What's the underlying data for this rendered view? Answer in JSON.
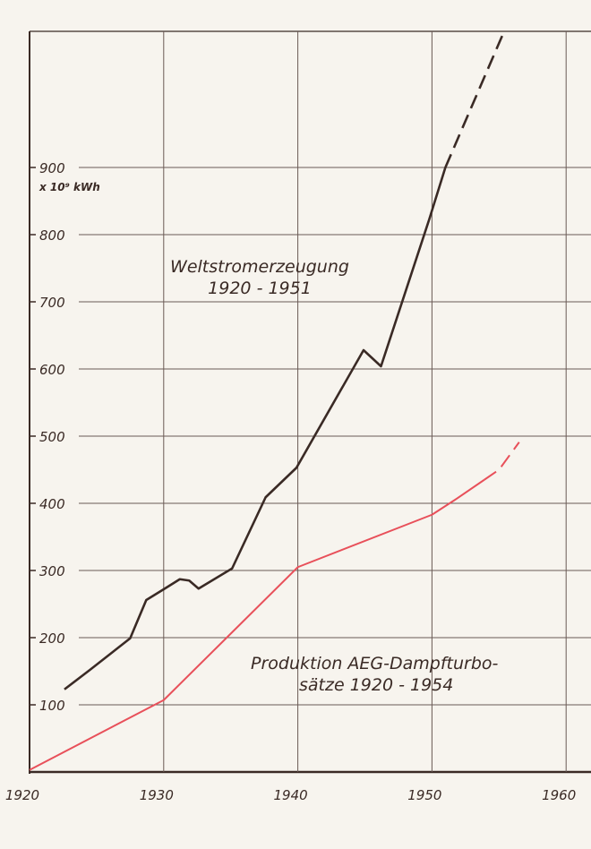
{
  "chart_data": {
    "type": "line",
    "title": "",
    "xlabel": "",
    "ylabel": "",
    "unit_label": "x 10⁹ kWh",
    "xlim": [
      1920,
      1962
    ],
    "ylim": [
      0,
      1100
    ],
    "grid": true,
    "x_ticks": [
      "1920",
      "1930",
      "1940",
      "1950",
      "1960"
    ],
    "x_tick_values": [
      1920,
      1930,
      1940,
      1950,
      1960
    ],
    "y_ticks": [
      "100",
      "200",
      "300",
      "400",
      "500",
      "600",
      "700",
      "800",
      "900"
    ],
    "y_tick_values": [
      100,
      200,
      300,
      400,
      500,
      600,
      700,
      800,
      900
    ],
    "series": [
      {
        "name": "Weltstromerzeugung 1920 - 1951",
        "label_lines": [
          "Weltstromerzeugung",
          "1920 - 1951"
        ],
        "color": "#3a2a25",
        "x": [
          1922.6,
          1924.5,
          1927.5,
          1928.7,
          1930,
          1931.2,
          1931.9,
          1932.6,
          1935.1,
          1937.6,
          1939.9,
          1944.9,
          1946.2,
          1949.8,
          1951
        ],
        "y": [
          123,
          152,
          199,
          256,
          272,
          287,
          285,
          273,
          303,
          409,
          453,
          628,
          604,
          823,
          900
        ],
        "projection": {
          "x": [
            1951,
            1955.3
          ],
          "y": [
            900,
            1099
          ]
        }
      },
      {
        "name": "Produktion AEG-Dampfturbosätze 1920 - 1954",
        "label_lines": [
          "Produktion AEG-Dampfturbo-",
          "sätze 1920 - 1954"
        ],
        "color": "#e8505a",
        "x": [
          1920,
          1930,
          1940,
          1950,
          1951.7,
          1953.9
        ],
        "y": [
          3,
          107,
          305,
          383,
          405,
          435
        ],
        "projection": {
          "x": [
            1953.9,
            1955,
            1956.5
          ],
          "y": [
            435,
            450,
            491
          ]
        }
      }
    ]
  }
}
